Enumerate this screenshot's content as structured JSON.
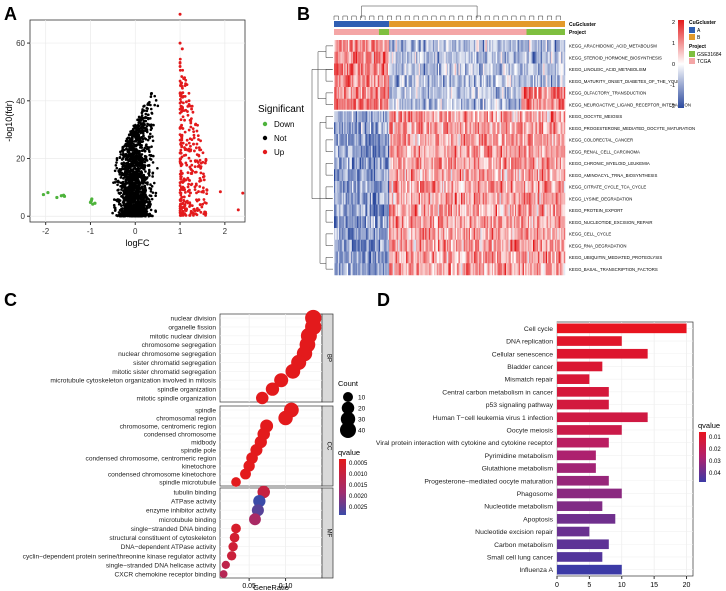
{
  "chart_data": [
    {
      "panel": "A",
      "type": "scatter",
      "xlabel": "logFC",
      "ylabel": "-log10(fdr)",
      "xlim": [
        -2.35,
        2.45
      ],
      "ylim": [
        -2,
        68
      ],
      "x_ticks": [
        "-2",
        "-1",
        "0",
        "1",
        "2"
      ],
      "y_ticks": [
        "0",
        "20",
        "40",
        "60"
      ],
      "legend": {
        "title": "Significant",
        "items": [
          "Down",
          "Not",
          "Up"
        ],
        "colors": [
          "#4db33b",
          "#000000",
          "#e31a1c"
        ]
      },
      "down_points": [
        [
          -2.05,
          7.5
        ],
        [
          -1.95,
          8.2
        ],
        [
          -1.75,
          6.5
        ],
        [
          -1.65,
          7.1
        ],
        [
          -1.6,
          7.3
        ],
        [
          -1.58,
          6.9
        ],
        [
          -1.0,
          4.8
        ],
        [
          -0.98,
          5.4
        ],
        [
          -0.95,
          4.2
        ],
        [
          -0.9,
          4.5
        ],
        [
          -0.97,
          6.0
        ]
      ],
      "up_outliers": [
        [
          1.0,
          70
        ],
        [
          1.0,
          60
        ],
        [
          1.05,
          58
        ],
        [
          2.4,
          8
        ],
        [
          2.3,
          2.2
        ],
        [
          1.9,
          8.5
        ],
        [
          1.6,
          9
        ],
        [
          1.45,
          4
        ],
        [
          1.3,
          25
        ],
        [
          1.2,
          40
        ],
        [
          1.1,
          48
        ]
      ]
    },
    {
      "panel": "B",
      "type": "heatmap",
      "annotation_title_1": "CuGcluster",
      "annotation_title_2": "Project",
      "rows": [
        "KEGG_ARACHIDONIC_ACID_METABOLISM",
        "KEGG_STEROID_HORMONE_BIOSYNTHESIS",
        "KEGG_LINOLEIC_ACID_METABOLISM",
        "KEGG_MATURITY_ONSET_DIABETES_OF_THE_YOUNG",
        "KEGG_OLFACTORY_TRANSDUCTION",
        "KEGG_NEUROACTIVE_LIGAND_RECEPTOR_INTERACTION",
        "KEGG_OOCYTE_MEIOSIS",
        "KEGG_PROGESTERONE_MEDIATED_OOCYTE_MATURATION",
        "KEGG_COLORECTAL_CANCER",
        "KEGG_RENAL_CELL_CARCINOMA",
        "KEGG_CHRONIC_MYELOID_LEUKEMIA",
        "KEGG_AMINOACYL_TRNA_BIOSYNTHESIS",
        "KEGG_CITRATE_CYCLE_TCA_CYCLE",
        "KEGG_LYSINE_DEGRADATION",
        "KEGG_PROTEIN_EXPORT",
        "KEGG_NUCLEOTIDE_EXCISION_REPAIR",
        "KEGG_CELL_CYCLE",
        "KEGG_RNA_DEGRADATION",
        "KEGG_UBIQUITIN_MEDIATED_PROTEOLYSIS",
        "KEGG_BASAL_TRANSCRIPTION_FACTORS"
      ],
      "color_scale": {
        "ticks": [
          "2",
          "1",
          "0",
          "-1",
          "-2"
        ],
        "colors": [
          "#e31a1c",
          "#ffffff",
          "#2c4a9e"
        ]
      },
      "cluster_legend": {
        "title": "CuGcluster",
        "items": [
          "A",
          "B"
        ],
        "colors": [
          "#2f5fb3",
          "#e39a2b"
        ]
      },
      "project_legend": {
        "title": "Project",
        "items": [
          "GSE31684",
          "TCGA"
        ],
        "colors": [
          "#7fbf3f",
          "#f4a6a6"
        ]
      }
    },
    {
      "panel": "C",
      "type": "scatter",
      "subtype": "dotplot",
      "xlabel": "GeneRatio",
      "x_ticks": [
        "0.05",
        "0.10"
      ],
      "xlim": [
        0.01,
        0.15
      ],
      "groups": [
        {
          "name": "BP",
          "terms": [
            "nuclear division",
            "organelle fission",
            "mitotic nuclear division",
            "chromosome segregation",
            "nuclear chromosome segregation",
            "sister chromatid segregation",
            "mitotic sister chromatid segregation",
            "microtubule cytoskeleton organization involved in mitosis",
            "spindle organization",
            "mitotic spindle organization"
          ],
          "ratio": [
            0.138,
            0.138,
            0.132,
            0.13,
            0.126,
            0.118,
            0.11,
            0.094,
            0.082,
            0.068
          ],
          "count": [
            42,
            42,
            40,
            38,
            36,
            34,
            32,
            28,
            24,
            20
          ],
          "qvalue": [
            0.0001,
            0.0001,
            0.0001,
            0.0001,
            0.0001,
            0.0001,
            0.0001,
            0.0001,
            0.0001,
            0.0001
          ]
        },
        {
          "name": "CC",
          "terms": [
            "spindle",
            "chromosomal region",
            "chromosome, centromeric region",
            "condensed chromosome",
            "midbody",
            "spindle pole",
            "condensed chromosome, centromeric region",
            "kinetochore",
            "condensed chromosome kinetochore",
            "spindle microtubule"
          ],
          "ratio": [
            0.108,
            0.1,
            0.074,
            0.07,
            0.066,
            0.06,
            0.054,
            0.05,
            0.045,
            0.032
          ],
          "count": [
            32,
            30,
            22,
            20,
            19,
            18,
            16,
            15,
            13,
            9
          ],
          "qvalue": [
            0.0001,
            0.0001,
            0.0001,
            0.0001,
            0.0001,
            0.0001,
            0.0001,
            0.0001,
            0.0001,
            0.0001
          ]
        },
        {
          "name": "MF",
          "terms": [
            "tubulin binding",
            "ATPase activity",
            "enzyme inhibitor activity",
            "microtubule binding",
            "single−stranded DNA binding",
            "structural constituent of cytoskeleton",
            "DNA−dependent ATPase activity",
            "cyclin−dependent protein serine/threonine kinase regulator activity",
            "single−stranded DNA helicase activity",
            "CXCR chemokine receptor binding"
          ],
          "ratio": [
            0.07,
            0.064,
            0.062,
            0.058,
            0.032,
            0.03,
            0.028,
            0.026,
            0.018,
            0.015
          ],
          "count": [
            20,
            19,
            18,
            17,
            9,
            9,
            8,
            8,
            5,
            4
          ],
          "qvalue": [
            0.0008,
            0.0028,
            0.0025,
            0.0015,
            0.0004,
            0.0005,
            0.0006,
            0.0007,
            0.001,
            0.0012
          ]
        }
      ],
      "count_legend": {
        "title": "Count",
        "values": [
          10,
          20,
          30,
          40
        ]
      },
      "qvalue_legend": {
        "title": "qvalue",
        "ticks": [
          "0.0005",
          "0.0010",
          "0.0015",
          "0.0020",
          "0.0025"
        ]
      }
    },
    {
      "panel": "D",
      "type": "bar",
      "orientation": "horizontal",
      "categories": [
        "Cell cycle",
        "DNA replication",
        "Cellular senescence",
        "Bladder cancer",
        "Mismatch repair",
        "Central carbon metabolism in cancer",
        "p53 signaling pathway",
        "Human T−cell leukemia virus 1 infection",
        "Oocyte meiosis",
        "Viral protein interaction with cytokine and cytokine receptor",
        "Pyrimidine metabolism",
        "Glutathione metabolism",
        "Progesterone−mediated oocyte maturation",
        "Phagosome",
        "Nucleotide metabolism",
        "Apoptosis",
        "Nucleotide excision repair",
        "Carbon metabolism",
        "Small cell lung cancer",
        "Influenza A"
      ],
      "values": [
        20,
        10,
        14,
        7,
        5,
        8,
        8,
        14,
        10,
        8,
        6,
        6,
        8,
        10,
        7,
        9,
        5,
        8,
        7,
        10
      ],
      "qvalue": [
        0.001,
        0.004,
        0.005,
        0.006,
        0.007,
        0.008,
        0.009,
        0.01,
        0.012,
        0.018,
        0.022,
        0.024,
        0.026,
        0.028,
        0.03,
        0.033,
        0.034,
        0.036,
        0.038,
        0.042
      ],
      "x_ticks": [
        "0",
        "5",
        "10",
        "15",
        "20"
      ],
      "xlim": [
        0,
        21
      ],
      "legend": {
        "title": "qvalue",
        "ticks": [
          "0.01",
          "0.02",
          "0.03",
          "0.04"
        ]
      }
    }
  ],
  "panels": {
    "a": "A",
    "b": "B",
    "c": "C",
    "d": "D"
  }
}
